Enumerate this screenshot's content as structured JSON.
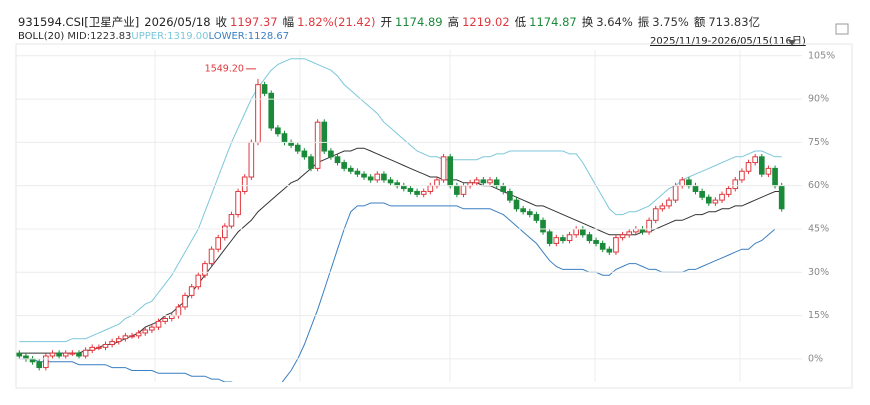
{
  "header": {
    "code": "931594.CSI[卫星产业]",
    "date": "2026/05/18",
    "items": [
      {
        "label": "收",
        "value": "1197.37",
        "color": "#e0383e"
      },
      {
        "label": "幅",
        "value": "1.82%(21.42)",
        "color": "#e0383e"
      },
      {
        "label": "开",
        "value": "1174.89",
        "color": "#1a8a3a"
      },
      {
        "label": "高",
        "value": "1219.02",
        "color": "#e0383e"
      },
      {
        "label": "低",
        "value": "1174.87",
        "color": "#1a8a3a"
      },
      {
        "label": "换",
        "value": "3.64%",
        "color": "#333333"
      },
      {
        "label": "振",
        "value": "3.75%",
        "color": "#333333"
      },
      {
        "label": "额",
        "value": "713.83亿",
        "color": "#333333"
      }
    ],
    "indicator": "BOLL(20)",
    "range": "2025/11/19-2026/05/15(116日)"
  },
  "chart_data": {
    "type": "candlestick",
    "up_color": "#e0383e",
    "down_color": "#1a8a3a",
    "ylim": [
      -8,
      107
    ],
    "yticks": [
      {
        "value": 105,
        "label": "105%"
      },
      {
        "value": 90,
        "label": "90%"
      },
      {
        "value": 75,
        "label": "75%"
      },
      {
        "value": 60,
        "label": "60%"
      },
      {
        "value": 45,
        "label": "45%"
      },
      {
        "value": 30,
        "label": "30%"
      },
      {
        "value": 15,
        "label": "15%"
      },
      {
        "value": 0,
        "label": "0%"
      }
    ],
    "grid": true,
    "annotation": {
      "text": "1549.20",
      "index": 36
    },
    "open": [
      2,
      1,
      0,
      -1,
      -3,
      1,
      2,
      1,
      2,
      2,
      1,
      3,
      4,
      4,
      5,
      6,
      7,
      8,
      8,
      9,
      10,
      11,
      13,
      14,
      15,
      18,
      22,
      25,
      29,
      33,
      38,
      42,
      46,
      50,
      58,
      63,
      75,
      95,
      92,
      80,
      78,
      75,
      74,
      72,
      70,
      66,
      82,
      72,
      70,
      68,
      66,
      65,
      64,
      63,
      62,
      64,
      62,
      61,
      60,
      59,
      58,
      57,
      58,
      60,
      62,
      70,
      60,
      57,
      60,
      61,
      62,
      61,
      62,
      60,
      58,
      55,
      52,
      51,
      50,
      48,
      44,
      40,
      42,
      41,
      43,
      45,
      43,
      41,
      40,
      38,
      37,
      42,
      43,
      44,
      45,
      44,
      48,
      52,
      53,
      55,
      60,
      62,
      60,
      58,
      56,
      54,
      55,
      57,
      59,
      62,
      65,
      68,
      70,
      64,
      66,
      60
    ],
    "high": [
      3,
      2,
      1,
      0,
      2,
      3,
      3,
      3,
      3,
      3,
      4,
      5,
      5,
      6,
      7,
      8,
      9,
      9,
      10,
      11,
      12,
      14,
      15,
      16,
      19,
      23,
      26,
      30,
      34,
      39,
      43,
      47,
      51,
      59,
      64,
      76,
      97,
      96,
      93,
      81,
      79,
      76,
      75,
      73,
      71,
      83,
      83,
      73,
      71,
      69,
      67,
      66,
      65,
      64,
      65,
      65,
      63,
      62,
      61,
      60,
      59,
      59,
      61,
      63,
      71,
      71,
      61,
      61,
      62,
      63,
      63,
      63,
      63,
      61,
      59,
      56,
      53,
      52,
      51,
      49,
      45,
      43,
      43,
      44,
      46,
      46,
      44,
      42,
      41,
      39,
      43,
      44,
      45,
      46,
      46,
      49,
      53,
      54,
      56,
      61,
      63,
      63,
      61,
      59,
      57,
      56,
      58,
      60,
      63,
      66,
      69,
      71,
      71,
      67,
      67,
      61
    ],
    "low": [
      0,
      -1,
      -2,
      -4,
      -4,
      0,
      0,
      0,
      1,
      0,
      0,
      2,
      3,
      3,
      4,
      5,
      6,
      7,
      7,
      8,
      9,
      10,
      12,
      13,
      14,
      17,
      21,
      24,
      28,
      32,
      37,
      41,
      45,
      49,
      57,
      62,
      74,
      91,
      79,
      77,
      74,
      73,
      71,
      69,
      65,
      65,
      71,
      69,
      67,
      65,
      64,
      63,
      62,
      61,
      61,
      61,
      60,
      59,
      58,
      57,
      56,
      56,
      57,
      59,
      61,
      59,
      56,
      56,
      59,
      60,
      60,
      60,
      59,
      57,
      54,
      51,
      50,
      49,
      47,
      43,
      39,
      39,
      40,
      40,
      42,
      42,
      40,
      39,
      37,
      36,
      36,
      41,
      42,
      43,
      43,
      43,
      47,
      51,
      52,
      54,
      59,
      59,
      57,
      55,
      53,
      53,
      54,
      56,
      58,
      61,
      64,
      67,
      63,
      63,
      59,
      51
    ],
    "close": [
      1,
      0,
      -1,
      -3,
      1,
      2,
      1,
      2,
      2,
      1,
      3,
      4,
      4,
      5,
      6,
      7,
      8,
      8,
      9,
      10,
      11,
      13,
      14,
      15,
      18,
      22,
      25,
      29,
      33,
      38,
      42,
      46,
      50,
      58,
      63,
      75,
      95,
      92,
      80,
      78,
      75,
      74,
      72,
      70,
      66,
      82,
      72,
      70,
      68,
      66,
      65,
      64,
      63,
      62,
      64,
      62,
      61,
      60,
      59,
      58,
      57,
      58,
      60,
      62,
      70,
      60,
      57,
      60,
      61,
      62,
      61,
      62,
      60,
      58,
      55,
      52,
      51,
      50,
      48,
      44,
      40,
      42,
      41,
      43,
      45,
      43,
      41,
      40,
      38,
      37,
      42,
      43,
      44,
      45,
      44,
      48,
      52,
      53,
      55,
      60,
      62,
      60,
      58,
      56,
      54,
      55,
      57,
      59,
      62,
      65,
      68,
      70,
      64,
      66,
      60,
      52
    ],
    "series": [
      {
        "name": "MID:1223.83",
        "color": "#333333",
        "values": [
          2,
          2,
          2,
          2,
          2,
          2,
          2,
          2,
          2,
          2,
          3,
          3,
          4,
          5,
          5,
          6,
          7,
          8,
          9,
          11,
          12,
          13,
          15,
          16,
          18,
          20,
          23,
          26,
          29,
          32,
          35,
          38,
          41,
          44,
          46,
          48,
          51,
          53,
          55,
          57,
          59,
          61,
          62,
          64,
          66,
          68,
          69,
          70,
          71,
          72,
          72,
          73,
          73,
          72,
          71,
          70,
          69,
          68,
          67,
          66,
          65,
          64,
          63,
          63,
          62,
          62,
          62,
          61,
          61,
          61,
          60,
          60,
          59,
          58,
          57,
          56,
          55,
          54,
          53,
          53,
          52,
          51,
          50,
          49,
          48,
          47,
          46,
          45,
          44,
          43,
          43,
          43,
          43,
          43,
          44,
          44,
          45,
          46,
          47,
          48,
          48,
          49,
          50,
          50,
          51,
          51,
          52,
          52,
          53,
          53,
          54,
          55,
          56,
          57,
          58,
          58
        ]
      },
      {
        "name": "UPPER:1319.00",
        "color": "#7cc7dc",
        "values": [
          6,
          6,
          6,
          6,
          6,
          6,
          6,
          6,
          7,
          7,
          7,
          8,
          9,
          10,
          11,
          12,
          14,
          15,
          17,
          19,
          20,
          23,
          26,
          29,
          33,
          37,
          41,
          45,
          51,
          57,
          63,
          69,
          75,
          80,
          85,
          90,
          94,
          97,
          100,
          102,
          103,
          104,
          104,
          104,
          103,
          102,
          101,
          100,
          98,
          95,
          93,
          91,
          89,
          87,
          85,
          82,
          80,
          78,
          76,
          74,
          72,
          71,
          70,
          70,
          69,
          69,
          69,
          69,
          69,
          69,
          70,
          70,
          71,
          71,
          72,
          72,
          72,
          72,
          72,
          72,
          72,
          72,
          72,
          71,
          71,
          68,
          64,
          60,
          56,
          52,
          50,
          50,
          51,
          51,
          52,
          53,
          55,
          57,
          59,
          60,
          62,
          63,
          64,
          65,
          66,
          67,
          68,
          69,
          70,
          70,
          71,
          72,
          72,
          71,
          70,
          70
        ]
      },
      {
        "name": "LOWER:1128.67",
        "color": "#3a7fc1",
        "values": [
          0,
          0,
          0,
          -1,
          -1,
          -1,
          -1,
          -1,
          -1,
          -2,
          -2,
          -2,
          -2,
          -2,
          -3,
          -3,
          -3,
          -4,
          -4,
          -4,
          -4,
          -5,
          -5,
          -5,
          -5,
          -5,
          -6,
          -6,
          -6,
          -7,
          -7,
          -8,
          -8,
          -9,
          -9,
          -10,
          -10,
          -11,
          -11,
          -10,
          -7,
          -4,
          0,
          5,
          11,
          17,
          24,
          31,
          38,
          45,
          51,
          53,
          53,
          54,
          54,
          54,
          53,
          53,
          53,
          53,
          53,
          53,
          53,
          53,
          53,
          53,
          53,
          52,
          52,
          52,
          52,
          52,
          51,
          50,
          48,
          46,
          44,
          42,
          40,
          37,
          34,
          32,
          31,
          31,
          31,
          31,
          30,
          30,
          29,
          29,
          31,
          32,
          33,
          33,
          32,
          31,
          31,
          30,
          30,
          30,
          30,
          31,
          31,
          32,
          33,
          34,
          35,
          36,
          37,
          38,
          38,
          40,
          41,
          43,
          45,
          45
        ]
      }
    ]
  }
}
